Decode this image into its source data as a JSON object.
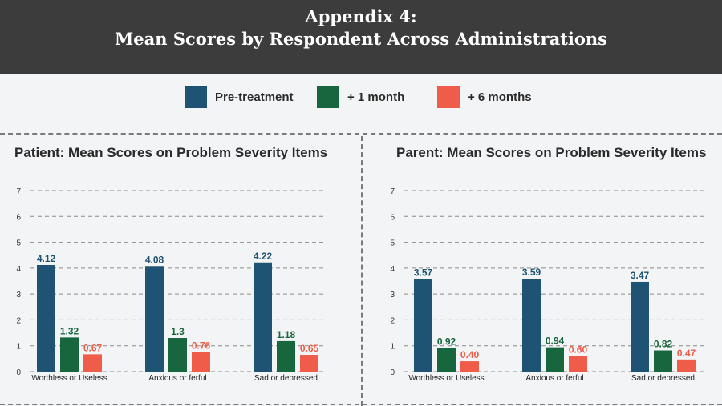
{
  "title_line1": "Appendix 4:",
  "title_line2": "Mean Scores by Respondent Across Administrations",
  "legend": [
    {
      "label": "Pre-treatment",
      "color": "#1e5373"
    },
    {
      "label": "+ 1 month",
      "color": "#17663d"
    },
    {
      "label": "+ 6 months",
      "color": "#ef5c49"
    }
  ],
  "chart_data": [
    {
      "type": "bar",
      "title": "Patient: Mean Scores on Problem Severity Items",
      "categories": [
        "Worthless or Useless",
        "Anxious or ferful",
        "Sad or depressed"
      ],
      "series": [
        {
          "name": "Pre-treatment",
          "values": [
            4.12,
            4.08,
            4.22
          ],
          "labels": [
            "4.12",
            "4.08",
            "4.22"
          ]
        },
        {
          "name": "+ 1 month",
          "values": [
            1.32,
            1.3,
            1.18
          ],
          "labels": [
            "1.32",
            "1.3",
            "1.18"
          ]
        },
        {
          "name": "+ 6 months",
          "values": [
            0.67,
            0.76,
            0.65
          ],
          "labels": [
            "0.67",
            "0.76",
            "0.65"
          ]
        }
      ],
      "yticks": [
        "0",
        "1",
        "2",
        "3",
        "4",
        "5",
        "6",
        "7"
      ],
      "ylim": [
        0,
        7
      ],
      "xlabel": "",
      "ylabel": "",
      "grid": true
    },
    {
      "type": "bar",
      "title": "Parent: Mean Scores on Problem Severity Items",
      "categories": [
        "Worthless or Useless",
        "Anxious or ferful",
        "Sad or depressed"
      ],
      "series": [
        {
          "name": "Pre-treatment",
          "values": [
            3.57,
            3.59,
            3.47
          ],
          "labels": [
            "3.57",
            "3.59",
            "3.47"
          ]
        },
        {
          "name": "+ 1 month",
          "values": [
            0.92,
            0.94,
            0.82
          ],
          "labels": [
            "0.92",
            "0.94",
            "0.82"
          ]
        },
        {
          "name": "+ 6 months",
          "values": [
            0.4,
            0.6,
            0.47
          ],
          "labels": [
            "0.40",
            "0.60",
            "0.47"
          ]
        }
      ],
      "yticks": [
        "0",
        "1",
        "2",
        "3",
        "4",
        "5",
        "6",
        "7"
      ],
      "ylim": [
        0,
        7
      ],
      "xlabel": "",
      "ylabel": "",
      "grid": true
    }
  ]
}
